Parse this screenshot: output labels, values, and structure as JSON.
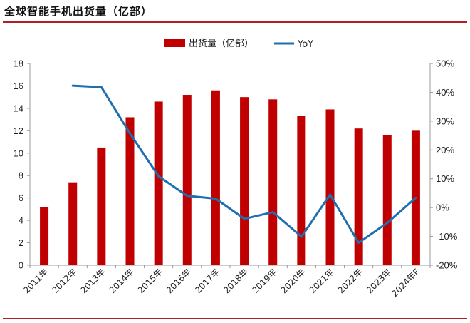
{
  "title": "全球智能手机出货量（亿部）",
  "chart_data": {
    "type": "bar+line",
    "categories": [
      "2011年",
      "2012年",
      "2013年",
      "2014年",
      "2015年",
      "2016年",
      "2017年",
      "2018年",
      "2019年",
      "2020年",
      "2021年",
      "2022年",
      "2023年",
      "2024年F"
    ],
    "series": [
      {
        "name": "出货量（亿部）",
        "type": "bar",
        "axis": "left",
        "color": "#c00000",
        "values": [
          5.2,
          7.4,
          10.5,
          13.2,
          14.6,
          15.2,
          15.6,
          15.0,
          14.8,
          13.3,
          13.9,
          12.2,
          11.6,
          12.0
        ]
      },
      {
        "name": "YoY",
        "type": "line",
        "axis": "right",
        "color": "#1f6fb0",
        "values": [
          null,
          42.3,
          41.8,
          25.7,
          10.9,
          4.1,
          3.1,
          -3.9,
          -1.6,
          -10.1,
          4.5,
          -12.2,
          -5.3,
          3.4
        ]
      }
    ],
    "y_left": {
      "min": 0,
      "max": 18,
      "step": 2,
      "ticks": [
        "0",
        "2",
        "4",
        "6",
        "8",
        "10",
        "12",
        "14",
        "16",
        "18"
      ]
    },
    "y_right": {
      "min": -20,
      "max": 50,
      "step": 10,
      "ticks": [
        "-20%",
        "-10%",
        "0%",
        "10%",
        "20%",
        "30%",
        "40%",
        "50%"
      ]
    },
    "legend": {
      "position": "top"
    },
    "grid": false
  }
}
